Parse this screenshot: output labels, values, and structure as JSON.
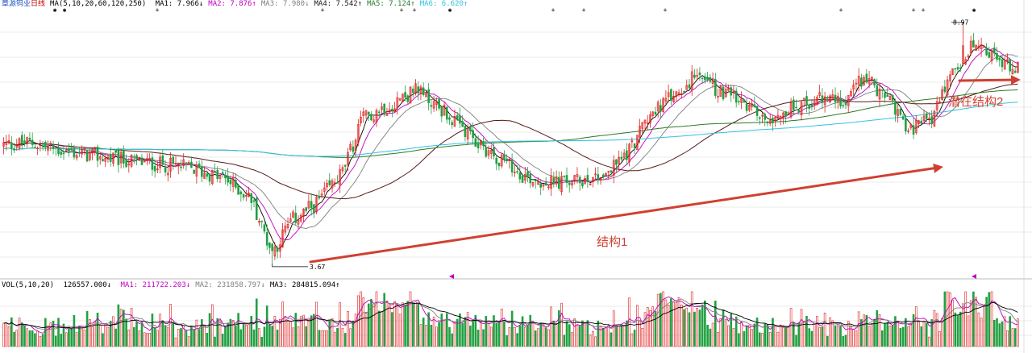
{
  "price_header": {
    "title": "章源钨业",
    "period": "日线",
    "ma_def": "MA(5,10,20,60,120,250)",
    "ma_items": [
      {
        "label": "MA1:",
        "value": "7.966↓",
        "color": "#000000"
      },
      {
        "label": "MA2:",
        "value": "7.876↑",
        "color": "#c000c0"
      },
      {
        "label": "MA3:",
        "value": "7.980↓",
        "color": "#7f7f7f"
      },
      {
        "label": "MA4:",
        "value": "7.542↑",
        "color": "#1a1a1a"
      },
      {
        "label": "MA5:",
        "value": "7.124↑",
        "color": "#2a7a2a"
      },
      {
        "label": "MA6:",
        "value": "6.620↑",
        "color": "#33c0e0"
      }
    ]
  },
  "volume_header": {
    "def": "VOL(5,10,20)",
    "value": "126557.000↓",
    "ma_items": [
      {
        "label": "MA1:",
        "value": "211722.203↓",
        "color": "#c000c0"
      },
      {
        "label": "MA2:",
        "value": "231858.797↓",
        "color": "#7f7f7f"
      },
      {
        "label": "MA3:",
        "value": "284815.094↑",
        "color": "#000000"
      }
    ]
  },
  "annotations": {
    "structure1": "结构1",
    "structure2": "潜在结构2",
    "low_label": "3.67",
    "high_label": "8.97"
  },
  "colors": {
    "up": "#e02020",
    "down": "#20a040",
    "ma1": "#000000",
    "ma2": "#c000c0",
    "ma3": "#7f7f7f",
    "ma4": "#5a1a1a",
    "ma5": "#2a7a2a",
    "ma6": "#33c0e0",
    "arrow": "#d04030",
    "grid": "#e4e4e4"
  },
  "chart_data": {
    "type": "candlestick",
    "low": 3.67,
    "high": 8.97,
    "ylim": [
      3.4,
      9.3
    ],
    "price_keypoints": [
      [
        0,
        6.3
      ],
      [
        10,
        6.35
      ],
      [
        20,
        6.2
      ],
      [
        30,
        6.1
      ],
      [
        40,
        6.0
      ],
      [
        55,
        5.9
      ],
      [
        70,
        5.8
      ],
      [
        85,
        5.55
      ],
      [
        95,
        5.1
      ],
      [
        103,
        3.9
      ],
      [
        110,
        4.6
      ],
      [
        120,
        5.0
      ],
      [
        130,
        5.7
      ],
      [
        138,
        6.9
      ],
      [
        148,
        7.2
      ],
      [
        158,
        7.5
      ],
      [
        168,
        7.1
      ],
      [
        178,
        6.5
      ],
      [
        190,
        6.0
      ],
      [
        200,
        5.6
      ],
      [
        210,
        5.45
      ],
      [
        220,
        5.5
      ],
      [
        232,
        5.7
      ],
      [
        240,
        6.2
      ],
      [
        248,
        7.0
      ],
      [
        255,
        7.3
      ],
      [
        265,
        7.8
      ],
      [
        275,
        7.5
      ],
      [
        283,
        7.2
      ],
      [
        292,
        6.9
      ],
      [
        302,
        7.1
      ],
      [
        312,
        7.3
      ],
      [
        322,
        7.3
      ],
      [
        330,
        7.8
      ],
      [
        340,
        7.3
      ],
      [
        348,
        6.6
      ],
      [
        356,
        6.9
      ],
      [
        365,
        8.0
      ],
      [
        372,
        8.5
      ],
      [
        380,
        8.2
      ],
      [
        390,
        8.0
      ]
    ],
    "n_candles": 390,
    "volume_ma_periods": [
      5,
      10,
      20
    ]
  }
}
